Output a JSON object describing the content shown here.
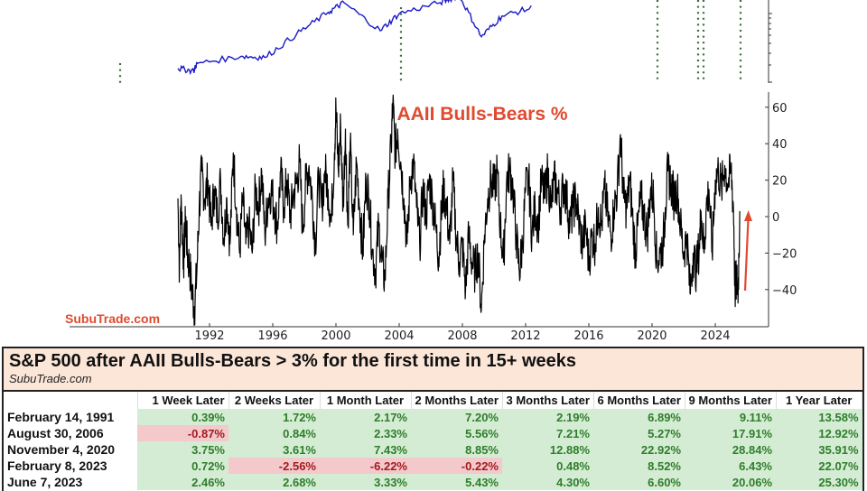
{
  "chart_data": [
    {
      "type": "line",
      "title": "",
      "series": [
        {
          "name": "S&P 500",
          "color": "#1a1ac8"
        }
      ],
      "notes": "Top panel (partially cropped): S&P 500 log-scale line with vertical green dotted lines marking signal dates",
      "signal_lines_years": [
        1991.1,
        2006.66,
        2020.84,
        2023.1,
        2023.43,
        2025.5
      ],
      "signal_line_color": "#3a6b3a",
      "approx_points": [
        {
          "x": 1990.0,
          "y": 0.12
        },
        {
          "x": 1991.0,
          "y": 0.1
        },
        {
          "x": 1991.2,
          "y": 0.16
        },
        {
          "x": 1994.0,
          "y": 0.22
        },
        {
          "x": 1995.5,
          "y": 0.21
        },
        {
          "x": 1997.5,
          "y": 0.4
        },
        {
          "x": 1999.5,
          "y": 0.58
        },
        {
          "x": 2000.5,
          "y": 0.66
        },
        {
          "x": 2002.8,
          "y": 0.43
        },
        {
          "x": 2004.0,
          "y": 0.57
        },
        {
          "x": 2006.6,
          "y": 0.66
        },
        {
          "x": 2007.8,
          "y": 0.72
        },
        {
          "x": 2009.2,
          "y": 0.38
        },
        {
          "x": 2010.5,
          "y": 0.55
        },
        {
          "x": 2012.5,
          "y": 0.62
        }
      ]
    },
    {
      "type": "line",
      "title": "AAII Bulls-Bears %",
      "xlabel": "",
      "ylabel": "",
      "x_ticks": [
        "1992",
        "1996",
        "2000",
        "2004",
        "2008",
        "2012",
        "2016",
        "2020",
        "2024"
      ],
      "y_ticks": [
        60,
        40,
        20,
        0,
        -20,
        -40
      ],
      "xlim": [
        1989.8,
        2027.5
      ],
      "ylim": [
        -55,
        66
      ],
      "grid": false,
      "y_axis_position": "right",
      "annotation": "red upward arrow near 2025 from -40 to +3",
      "series": [
        {
          "name": "AAII Bulls-Bears %",
          "color": "#000000",
          "points": [
            [
              1990.0,
              10
            ],
            [
              1990.1,
              -30
            ],
            [
              1990.2,
              12
            ],
            [
              1990.35,
              -25
            ],
            [
              1990.5,
              0
            ],
            [
              1990.6,
              -20
            ],
            [
              1990.75,
              -28
            ],
            [
              1990.9,
              -42
            ],
            [
              1991.05,
              -50
            ],
            [
              1991.2,
              -30
            ],
            [
              1991.35,
              5
            ],
            [
              1991.5,
              25
            ],
            [
              1991.7,
              10
            ],
            [
              1991.9,
              20
            ],
            [
              1992.1,
              -5
            ],
            [
              1992.3,
              15
            ],
            [
              1992.5,
              0
            ],
            [
              1992.7,
              20
            ],
            [
              1992.9,
              -12
            ],
            [
              1993.1,
              10
            ],
            [
              1993.3,
              -15
            ],
            [
              1993.5,
              35
            ],
            [
              1993.7,
              5
            ],
            [
              1993.9,
              -20
            ],
            [
              1994.1,
              10
            ],
            [
              1994.3,
              -15
            ],
            [
              1994.5,
              -5
            ],
            [
              1994.7,
              -20
            ],
            [
              1994.9,
              15
            ],
            [
              1995.1,
              5
            ],
            [
              1995.3,
              25
            ],
            [
              1995.5,
              -10
            ],
            [
              1995.7,
              10
            ],
            [
              1995.9,
              15
            ],
            [
              1996.1,
              5
            ],
            [
              1996.3,
              -5
            ],
            [
              1996.5,
              25
            ],
            [
              1996.7,
              5
            ],
            [
              1996.9,
              20
            ],
            [
              1997.1,
              0
            ],
            [
              1997.3,
              12
            ],
            [
              1997.5,
              18
            ],
            [
              1997.7,
              30
            ],
            [
              1997.9,
              -8
            ],
            [
              1998.1,
              20
            ],
            [
              1998.3,
              28
            ],
            [
              1998.5,
              10
            ],
            [
              1998.7,
              -15
            ],
            [
              1998.9,
              22
            ],
            [
              1999.1,
              5
            ],
            [
              1999.3,
              25
            ],
            [
              1999.5,
              15
            ],
            [
              1999.7,
              -3
            ],
            [
              1999.9,
              35
            ],
            [
              2000.0,
              60
            ],
            [
              2000.15,
              25
            ],
            [
              2000.3,
              50
            ],
            [
              2000.45,
              5
            ],
            [
              2000.6,
              48
            ],
            [
              2000.75,
              -5
            ],
            [
              2000.9,
              40
            ],
            [
              2001.1,
              -10
            ],
            [
              2001.3,
              30
            ],
            [
              2001.5,
              5
            ],
            [
              2001.7,
              -20
            ],
            [
              2001.9,
              20
            ],
            [
              2002.1,
              10
            ],
            [
              2002.3,
              -18
            ],
            [
              2002.5,
              -30
            ],
            [
              2002.7,
              -5
            ],
            [
              2002.9,
              -25
            ],
            [
              2003.1,
              -35
            ],
            [
              2003.3,
              10
            ],
            [
              2003.5,
              40
            ],
            [
              2003.6,
              62
            ],
            [
              2003.75,
              35
            ],
            [
              2003.9,
              48
            ],
            [
              2004.1,
              30
            ],
            [
              2004.3,
              10
            ],
            [
              2004.5,
              -15
            ],
            [
              2004.7,
              20
            ],
            [
              2004.9,
              30
            ],
            [
              2005.1,
              5
            ],
            [
              2005.3,
              -15
            ],
            [
              2005.5,
              15
            ],
            [
              2005.7,
              0
            ],
            [
              2005.9,
              20
            ],
            [
              2006.1,
              10
            ],
            [
              2006.3,
              -5
            ],
            [
              2006.5,
              -22
            ],
            [
              2006.66,
              0
            ],
            [
              2006.8,
              15
            ],
            [
              2007.0,
              5
            ],
            [
              2007.2,
              -15
            ],
            [
              2007.4,
              20
            ],
            [
              2007.6,
              -10
            ],
            [
              2007.8,
              -25
            ],
            [
              2008.0,
              -15
            ],
            [
              2008.2,
              -40
            ],
            [
              2008.4,
              -10
            ],
            [
              2008.6,
              -25
            ],
            [
              2008.8,
              -30
            ],
            [
              2009.0,
              -20
            ],
            [
              2009.2,
              -51
            ],
            [
              2009.4,
              -10
            ],
            [
              2009.6,
              10
            ],
            [
              2009.8,
              20
            ],
            [
              2010.0,
              15
            ],
            [
              2010.2,
              25
            ],
            [
              2010.4,
              -5
            ],
            [
              2010.6,
              -25
            ],
            [
              2010.8,
              20
            ],
            [
              2011.0,
              25
            ],
            [
              2011.2,
              15
            ],
            [
              2011.4,
              -10
            ],
            [
              2011.6,
              -30
            ],
            [
              2011.8,
              -15
            ],
            [
              2012.0,
              15
            ],
            [
              2012.2,
              20
            ],
            [
              2012.4,
              -10
            ],
            [
              2012.6,
              5
            ],
            [
              2012.8,
              -5
            ],
            [
              2013.0,
              20
            ],
            [
              2013.2,
              10
            ],
            [
              2013.4,
              25
            ],
            [
              2013.6,
              5
            ],
            [
              2013.8,
              20
            ],
            [
              2014.0,
              15
            ],
            [
              2014.2,
              5
            ],
            [
              2014.4,
              18
            ],
            [
              2014.6,
              10
            ],
            [
              2014.8,
              -5
            ],
            [
              2015.0,
              5
            ],
            [
              2015.2,
              10
            ],
            [
              2015.4,
              -5
            ],
            [
              2015.6,
              -15
            ],
            [
              2015.8,
              -5
            ],
            [
              2016.0,
              -25
            ],
            [
              2016.2,
              -10
            ],
            [
              2016.4,
              -15
            ],
            [
              2016.6,
              5
            ],
            [
              2016.8,
              -5
            ],
            [
              2017.0,
              15
            ],
            [
              2017.2,
              0
            ],
            [
              2017.4,
              -10
            ],
            [
              2017.6,
              5
            ],
            [
              2017.8,
              15
            ],
            [
              2018.0,
              45
            ],
            [
              2018.2,
              10
            ],
            [
              2018.4,
              5
            ],
            [
              2018.6,
              20
            ],
            [
              2018.8,
              -5
            ],
            [
              2018.95,
              -20
            ],
            [
              2019.1,
              -5
            ],
            [
              2019.3,
              10
            ],
            [
              2019.5,
              0
            ],
            [
              2019.7,
              -10
            ],
            [
              2019.9,
              15
            ],
            [
              2020.1,
              10
            ],
            [
              2020.3,
              -25
            ],
            [
              2020.5,
              -20
            ],
            [
              2020.7,
              -15
            ],
            [
              2020.84,
              5
            ],
            [
              2021.0,
              25
            ],
            [
              2021.2,
              18
            ],
            [
              2021.4,
              10
            ],
            [
              2021.6,
              15
            ],
            [
              2021.8,
              -5
            ],
            [
              2022.0,
              -20
            ],
            [
              2022.2,
              -10
            ],
            [
              2022.4,
              -42
            ],
            [
              2022.6,
              -20
            ],
            [
              2022.8,
              -30
            ],
            [
              2023.0,
              -15
            ],
            [
              2023.1,
              3
            ],
            [
              2023.3,
              -20
            ],
            [
              2023.43,
              5
            ],
            [
              2023.6,
              15
            ],
            [
              2023.8,
              -20
            ],
            [
              2024.0,
              20
            ],
            [
              2024.2,
              25
            ],
            [
              2024.4,
              15
            ],
            [
              2024.6,
              28
            ],
            [
              2024.8,
              18
            ],
            [
              2025.0,
              25
            ],
            [
              2025.15,
              5
            ],
            [
              2025.25,
              -40
            ],
            [
              2025.35,
              -35
            ],
            [
              2025.45,
              -40
            ],
            [
              2025.55,
              3
            ]
          ]
        }
      ]
    }
  ],
  "charts": {
    "top_title": "",
    "bottom_title": "AAII Bulls-Bears %",
    "watermark": "SubuTrade.com",
    "x_ticks": [
      "1992",
      "1996",
      "2000",
      "2004",
      "2008",
      "2012",
      "2016",
      "2020",
      "2024"
    ],
    "y_ticks": [
      "60",
      "40",
      "20",
      "0",
      "−20",
      "−40"
    ],
    "colors": {
      "sp500_line": "#1a1ac8",
      "aaii_line": "#000000",
      "accent": "#e04a2f",
      "signal_dots": "#3a6b3a"
    }
  },
  "table": {
    "title": "S&P 500 after AAII Bulls-Bears > 3% for the first time in 15+ weeks",
    "subtitle": "SubuTrade.com",
    "columns": [
      "",
      "1 Week Later",
      "2 Weeks Later",
      "1 Month Later",
      "2 Months Later",
      "3 Months Later",
      "6 Months Later",
      "9 Months Later",
      "1 Year Later"
    ],
    "rows": [
      {
        "date": "February 14, 1991",
        "values": [
          "0.39%",
          "1.72%",
          "2.17%",
          "7.20%",
          "2.19%",
          "6.89%",
          "9.11%",
          "13.58%"
        ]
      },
      {
        "date": "August 30, 2006",
        "values": [
          "-0.87%",
          "0.84%",
          "2.33%",
          "5.56%",
          "7.21%",
          "5.27%",
          "17.91%",
          "12.92%"
        ]
      },
      {
        "date": "November 4, 2020",
        "values": [
          "3.75%",
          "3.61%",
          "7.43%",
          "8.85%",
          "12.88%",
          "22.92%",
          "28.84%",
          "35.91%"
        ]
      },
      {
        "date": "February 8, 2023",
        "values": [
          "0.72%",
          "-2.56%",
          "-6.22%",
          "-0.22%",
          "0.48%",
          "8.52%",
          "6.43%",
          "22.07%"
        ]
      },
      {
        "date": "June 7, 2023",
        "values": [
          "2.46%",
          "2.68%",
          "3.33%",
          "5.43%",
          "4.30%",
          "6.60%",
          "20.06%",
          "25.30%"
        ]
      }
    ],
    "colors": {
      "header_bg": "#fbe6d8",
      "pos_bg": "#d4ecd3",
      "pos_text": "#2f7d2c",
      "neg_bg": "#f3c9cc",
      "neg_text": "#a31a1e"
    }
  }
}
